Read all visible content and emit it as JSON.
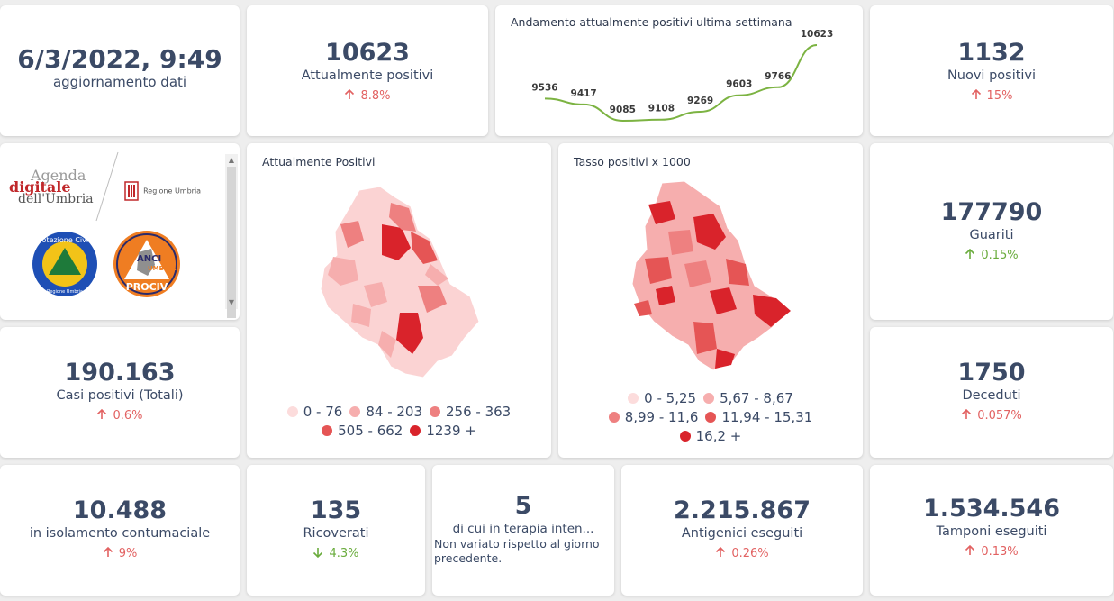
{
  "update": {
    "datetime": "6/3/2022, 9:49",
    "label": "aggiornamento dati"
  },
  "positivi": {
    "value": "10623",
    "label": "Attualmente positivi",
    "change": "8.8%"
  },
  "trend": {
    "title": "Andamento attualmente positivi ultima settimana",
    "chart_data": {
      "type": "line",
      "values": [
        9536,
        9417,
        9085,
        9108,
        9269,
        9603,
        9766,
        10623
      ],
      "labels": [
        "9536",
        "9417",
        "9085",
        "9108",
        "9269",
        "9603",
        "9766",
        "10623"
      ]
    }
  },
  "nuovi": {
    "value": "1132",
    "label": "Nuovi positivi",
    "change": "15%"
  },
  "logos": {
    "agenda_line1": "Agenda",
    "agenda_line2": "digitale",
    "agenda_line3": "dell'Umbria",
    "regione": "Regione Umbria",
    "protezione": "Protezione Civile",
    "regione_small": "Regione Umbria",
    "anci_line1": "ANCI",
    "anci_line2": "UMBRIA",
    "anci_line3": "PROCIV"
  },
  "map1": {
    "title": "Attualmente Positivi",
    "legend": [
      {
        "label": "0 - 76",
        "color": "#fcdcdc"
      },
      {
        "label": "84 - 203",
        "color": "#f6aeae"
      },
      {
        "label": "256 - 363",
        "color": "#ee8080"
      },
      {
        "label": "505 - 662",
        "color": "#e55555"
      },
      {
        "label": "1239 +",
        "color": "#d9232b"
      }
    ]
  },
  "map2": {
    "title": "Tasso positivi x 1000",
    "legend": [
      {
        "label": "0 - 5,25",
        "color": "#fcdcdc"
      },
      {
        "label": "5,67 - 8,67",
        "color": "#f6aeae"
      },
      {
        "label": "8,99 - 11,6",
        "color": "#ee8080"
      },
      {
        "label": "11,94 - 15,31",
        "color": "#e55555"
      },
      {
        "label": "16,2 +",
        "color": "#d9232b"
      }
    ]
  },
  "guariti": {
    "value": "177790",
    "label": "Guariti",
    "change": "0.15%"
  },
  "totali": {
    "value": "190.163",
    "label": "Casi positivi (Totali)",
    "change": "0.6%"
  },
  "deceduti": {
    "value": "1750",
    "label": "Deceduti",
    "change": "0.057%"
  },
  "isolamento": {
    "value": "10.488",
    "label": "in isolamento contumaciale",
    "change": "9%"
  },
  "ricoverati": {
    "value": "135",
    "label": "Ricoverati",
    "change": "4.3%"
  },
  "terapia": {
    "value": "5",
    "label": "di cui in terapia inten...",
    "note": "Non variato rispetto al giorno precedente."
  },
  "antigenici": {
    "value": "2.215.867",
    "label": "Antigenici eseguiti",
    "change": "0.26%"
  },
  "tamponi": {
    "value": "1.534.546",
    "label": "Tamponi eseguiti",
    "change": "0.13%"
  },
  "colors": {
    "red": "#e26262",
    "green": "#6aac3d",
    "navy": "#3b4a66",
    "line": "#7cb342"
  }
}
